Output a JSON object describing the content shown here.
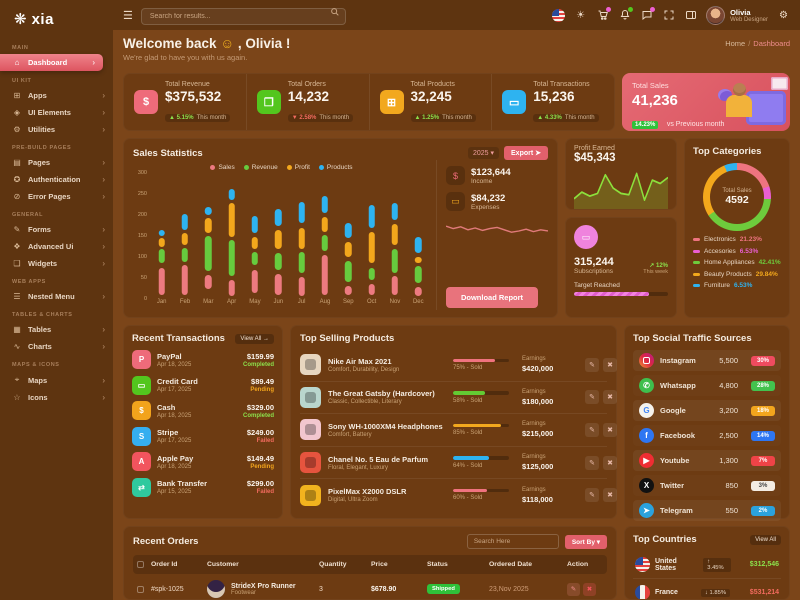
{
  "accent": "#e2606b",
  "sidebar": {
    "logo": "xia",
    "sections": [
      {
        "label": "MAIN",
        "items": [
          {
            "label": "Dashboard",
            "icon": "dashboard",
            "active": true
          }
        ]
      },
      {
        "label": "UI KIT",
        "items": [
          {
            "label": "Apps",
            "icon": "apps"
          },
          {
            "label": "UI Elements",
            "icon": "ui-elements"
          },
          {
            "label": "Utilities",
            "icon": "utilities"
          }
        ]
      },
      {
        "label": "PRE-BUILD PAGES",
        "items": [
          {
            "label": "Pages",
            "icon": "pages"
          },
          {
            "label": "Authentication",
            "icon": "authentication"
          },
          {
            "label": "Error Pages",
            "icon": "error-pages"
          }
        ]
      },
      {
        "label": "GENERAL",
        "items": [
          {
            "label": "Forms",
            "icon": "forms"
          },
          {
            "label": "Advanced Ui",
            "icon": "advanced-ui"
          },
          {
            "label": "Widgets",
            "icon": "widgets"
          }
        ]
      },
      {
        "label": "WEB APPS",
        "items": [
          {
            "label": "Nested Menu",
            "icon": "nested-menu"
          }
        ]
      },
      {
        "label": "TABLES & CHARTS",
        "items": [
          {
            "label": "Tables",
            "icon": "tables"
          },
          {
            "label": "Charts",
            "icon": "charts"
          }
        ]
      },
      {
        "label": "MAPS & ICONS",
        "items": [
          {
            "label": "Maps",
            "icon": "maps"
          },
          {
            "label": "Icons",
            "icon": "icons"
          }
        ]
      }
    ]
  },
  "header": {
    "search_placeholder": "Search for results...",
    "user_name": "Olivia",
    "user_role": "Web Designer"
  },
  "breadcrumb": {
    "home": "Home",
    "current": "Dashboard"
  },
  "welcome": {
    "title_pre": "Welcome back",
    "emoji": "☺",
    "title_post": ", Olivia !",
    "subtitle": "We're glad to have you with us again."
  },
  "stats": [
    {
      "title": "Total Revenue",
      "value": "$375,532",
      "change": "5.15%",
      "dir": "up",
      "note": "This month",
      "color": "#ee6b7a",
      "glyph": "$",
      "icon": "dollar"
    },
    {
      "title": "Total Orders",
      "value": "14,232",
      "change": "2.58%",
      "dir": "down",
      "note": "This month",
      "color": "#53c61e",
      "glyph": "❒",
      "icon": "box"
    },
    {
      "title": "Total Products",
      "value": "32,245",
      "change": "1.25%",
      "dir": "up",
      "note": "This month",
      "color": "#f2a81e",
      "glyph": "⊞",
      "icon": "gift"
    },
    {
      "title": "Total Transactions",
      "value": "15,236",
      "change": "4.33%",
      "dir": "up",
      "note": "This month",
      "color": "#2eb3f0",
      "glyph": "▭",
      "icon": "card"
    }
  ],
  "total_sales_card": {
    "title": "Total Sales",
    "value": "41,236",
    "badge": "14.23%",
    "note": "vs Previous month"
  },
  "sales_panel": {
    "title": "Sales Statistics",
    "year": "2025",
    "export_label": "Export",
    "income_value": "$123,644",
    "income_label": "Income",
    "expenses_value": "$84,232",
    "expenses_label": "Expenses",
    "download_label": "Download Report"
  },
  "profit_panel": {
    "title": "Profit Earned",
    "value": "$45,343"
  },
  "subscriptions": {
    "value": "315,244",
    "label": "Subscriptions",
    "change": "12%",
    "note": "This week",
    "target_label": "Target Reached",
    "progress_pct": 80
  },
  "categories_panel": {
    "title": "Top Categories"
  },
  "transactions_panel": {
    "title": "Recent Transactions",
    "view_all": "View All →",
    "items": [
      {
        "name": "PayPal",
        "date": "Apr 18, 2025",
        "amount": "$159.99",
        "status": "Completed",
        "color": "#ee6b7a",
        "glyph": "P",
        "icon": "paypal"
      },
      {
        "name": "Credit Card",
        "date": "Apr 17, 2025",
        "amount": "$89.49",
        "status": "Pending",
        "color": "#53c61e",
        "glyph": "▭",
        "icon": "credit-card"
      },
      {
        "name": "Cash",
        "date": "Apr 18, 2025",
        "amount": "$329.00",
        "status": "Completed",
        "color": "#f2a31c",
        "glyph": "$",
        "icon": "cash"
      },
      {
        "name": "Stripe",
        "date": "Apr 17, 2025",
        "amount": "$249.00",
        "status": "Failed",
        "color": "#35aef0",
        "glyph": "S",
        "icon": "stripe"
      },
      {
        "name": "Apple Pay",
        "date": "Apr 18, 2025",
        "amount": "$149.49",
        "status": "Pending",
        "color": "#f2545e",
        "glyph": "A",
        "icon": "apple-pay"
      },
      {
        "name": "Bank Transfer",
        "date": "Apr 15, 2025",
        "amount": "$299.00",
        "status": "Failed",
        "color": "#2fc99e",
        "glyph": "⇄",
        "icon": "bank-transfer"
      }
    ]
  },
  "products_panel": {
    "title": "Top Selling Products",
    "earnings_label": "Earnings",
    "items": [
      {
        "name": "Nike Air Max 2021",
        "tags": "Comfort, Durability, Design",
        "sold_pct": 75,
        "sold_label": "75% - Sold",
        "bar_color": "#f0737e",
        "earnings": "$420,000",
        "thumb": "#e7d6bf"
      },
      {
        "name": "The Great Gatsby (Hardcover)",
        "tags": "Classic, Collectible, Literary",
        "sold_pct": 58,
        "sold_label": "58% - Sold",
        "bar_color": "#63cb33",
        "earnings": "$180,000",
        "thumb": "#b9d6cd"
      },
      {
        "name": "Sony WH-1000XM4 Headphones",
        "tags": "Comfort, Battery",
        "sold_pct": 85,
        "sold_label": "85% - Sold",
        "bar_color": "#f2a81e",
        "earnings": "$215,000",
        "thumb": "#f2c6ce"
      },
      {
        "name": "Chanel No. 5 Eau de Parfum",
        "tags": "Floral, Elegant, Luxury",
        "sold_pct": 64,
        "sold_label": "64% - Sold",
        "bar_color": "#2eb3f0",
        "earnings": "$125,000",
        "thumb": "#e6543e"
      },
      {
        "name": "PixelMax X2000 DSLR",
        "tags": "Digital, Ultra Zoom",
        "sold_pct": 60,
        "sold_label": "60% - Sold",
        "bar_color": "#f0737e",
        "earnings": "$118,000",
        "thumb": "#f2b31e"
      }
    ]
  },
  "social_panel": {
    "title": "Top Social Traffic Sources",
    "items": [
      {
        "name": "Instagram",
        "count": "5,500",
        "pct": "30%",
        "badge_color": "#ef4b5f",
        "badge_text_color": "#ffffff",
        "icon": "instagram"
      },
      {
        "name": "Whatsapp",
        "count": "4,800",
        "pct": "28%",
        "badge_color": "#43c24e",
        "badge_text_color": "#ffffff",
        "icon": "whatsapp",
        "icon_bg": "#3fbf4d",
        "icon_glyph": "✆"
      },
      {
        "name": "Google",
        "count": "3,200",
        "pct": "18%",
        "badge_color": "#f2a51d",
        "badge_text_color": "#ffffff",
        "icon": "google",
        "icon_bg": "#f5f2ec",
        "icon_glyph": "G",
        "icon_color": "#4285F4"
      },
      {
        "name": "Facebook",
        "count": "2,500",
        "pct": "14%",
        "badge_color": "#2e76f2",
        "badge_text_color": "#ffffff",
        "icon": "facebook",
        "icon_bg": "#2e76f2",
        "icon_glyph": "f"
      },
      {
        "name": "Youtube",
        "count": "1,300",
        "pct": "7%",
        "badge_color": "#ef4347",
        "badge_text_color": "#ffffff",
        "icon": "youtube",
        "icon_bg": "#ef2d33",
        "icon_glyph": "▶"
      },
      {
        "name": "Twitter",
        "count": "850",
        "pct": "3%",
        "badge_color": "#f3ece3",
        "badge_text_color": "#444444",
        "icon": "twitter",
        "icon_bg": "#111111",
        "icon_glyph": "X"
      },
      {
        "name": "Telegram",
        "count": "550",
        "pct": "2%",
        "badge_color": "#2ba2dd",
        "badge_text_color": "#ffffff",
        "icon": "telegram",
        "icon_bg": "#2ba2dd",
        "icon_glyph": "➤"
      }
    ]
  },
  "orders_panel": {
    "title": "Recent Orders",
    "search_placeholder": "Search Here",
    "sort_label": "Sort By ▾",
    "columns": [
      "Order Id",
      "Customer",
      "Quantity",
      "Price",
      "Status",
      "Ordered Date",
      "Action"
    ],
    "rows": [
      {
        "id": "#spk-1025",
        "customer": "StrideX Pro Runner",
        "category": "Footwear",
        "quantity": "3",
        "price": "$678.90",
        "status": "Shipped",
        "date": "23,Nov 2025"
      }
    ]
  },
  "countries_panel": {
    "title": "Top Countries",
    "view_all": "View All",
    "items": [
      {
        "name": "United States",
        "flag": "us",
        "change": "3.45%",
        "dir": "up",
        "amount": "$312,546"
      },
      {
        "name": "France",
        "flag": "fr",
        "change": "1.85%",
        "dir": "down",
        "amount": "$531,214"
      }
    ]
  },
  "chart_data": [
    {
      "id": "sales_statistics",
      "type": "bar",
      "title": "Sales Statistics",
      "categories": [
        "Jan",
        "Feb",
        "Mar",
        "Apr",
        "May",
        "Jun",
        "Jul",
        "Aug",
        "Sep",
        "Oct",
        "Nov",
        "Dec"
      ],
      "ylim": [
        0,
        300
      ],
      "yticks": [
        0,
        50,
        100,
        150,
        200,
        250,
        300
      ],
      "legend_position": "top-center",
      "grid": false,
      "series": [
        {
          "name": "Sales",
          "color": "#ed7a80",
          "ranges": [
            [
              10,
              75
            ],
            [
              10,
              80
            ],
            [
              25,
              58
            ],
            [
              8,
              45
            ],
            [
              15,
              70
            ],
            [
              10,
              60
            ],
            [
              8,
              52
            ],
            [
              10,
              105
            ],
            [
              10,
              30
            ],
            [
              10,
              35
            ],
            [
              10,
              55
            ],
            [
              8,
              28
            ]
          ]
        },
        {
          "name": "Revenue",
          "color": "#67cb3e",
          "ranges": [
            [
              85,
              118
            ],
            [
              88,
              122
            ],
            [
              66,
              150
            ],
            [
              55,
              140
            ],
            [
              80,
              112
            ],
            [
              70,
              110
            ],
            [
              62,
              112
            ],
            [
              115,
              152
            ],
            [
              40,
              90
            ],
            [
              45,
              75
            ],
            [
              62,
              120
            ],
            [
              38,
              78
            ]
          ]
        },
        {
          "name": "Profit",
          "color": "#f3a71c",
          "ranges": [
            [
              125,
              145
            ],
            [
              128,
              158
            ],
            [
              158,
              192
            ],
            [
              148,
              228
            ],
            [
              120,
              148
            ],
            [
              118,
              165
            ],
            [
              120,
              170
            ],
            [
              160,
              196
            ],
            [
              100,
              135
            ],
            [
              85,
              160
            ],
            [
              128,
              178
            ],
            [
              85,
              100
            ]
          ]
        },
        {
          "name": "Products",
          "color": "#2eb3f0",
          "ranges": [
            [
              150,
              165
            ],
            [
              165,
              202
            ],
            [
              200,
              218
            ],
            [
              235,
              262
            ],
            [
              156,
              198
            ],
            [
              175,
              215
            ],
            [
              180,
              232
            ],
            [
              205,
              245
            ],
            [
              145,
              180
            ],
            [
              170,
              225
            ],
            [
              188,
              228
            ],
            [
              110,
              148
            ]
          ]
        }
      ]
    },
    {
      "id": "profit_earned_sparkline",
      "type": "line",
      "color": "#8ce03c",
      "fill": true,
      "values": [
        12,
        22,
        16,
        20,
        48,
        28,
        20,
        18,
        50,
        10,
        40,
        35,
        44
      ]
    },
    {
      "id": "expenses_sparkline",
      "type": "line",
      "color": "#e07a7a",
      "fill": false,
      "values": [
        30,
        26,
        29,
        24,
        27,
        23,
        26,
        28,
        24,
        20,
        22,
        25,
        21,
        24,
        22
      ]
    },
    {
      "id": "top_categories_donut",
      "type": "pie",
      "title": "Top Categories",
      "center_label": "Total Sales",
      "center_value": "4592",
      "slices": [
        {
          "label": "Electronics",
          "pct_label": "21.23%",
          "value": 21.23,
          "color": "#ee7480"
        },
        {
          "label": "Accesories",
          "pct_label": "6.53%",
          "value": 6.53,
          "color": "#ea5fd3"
        },
        {
          "label": "Home Appliances",
          "pct_label": "42.41%",
          "value": 42.41,
          "color": "#6ecb3c"
        },
        {
          "label": "Beauty Products",
          "pct_label": "29.84%",
          "value": 29.84,
          "color": "#f3a81c"
        },
        {
          "label": "Furniture",
          "pct_label": "6.53%",
          "value": 6.53,
          "color": "#2eb3f0"
        }
      ]
    }
  ]
}
